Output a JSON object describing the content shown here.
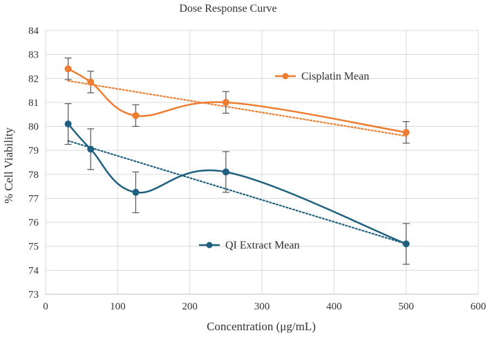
{
  "chart_data": {
    "type": "line",
    "title": "Dose Response Curve",
    "xlabel": "Concentration (μg/mL)",
    "ylabel": "% Cell Viability",
    "xlim": [
      0,
      600
    ],
    "ylim": [
      73,
      84
    ],
    "xticks": [
      0,
      100,
      200,
      300,
      400,
      500,
      600
    ],
    "yticks": [
      73,
      74,
      75,
      76,
      77,
      78,
      79,
      80,
      81,
      82,
      83,
      84
    ],
    "grid": true,
    "smooth": true,
    "series": [
      {
        "name": "Cisplatin Mean",
        "color": "#ED7D31",
        "x": [
          31.25,
          62.5,
          125,
          250,
          500
        ],
        "y": [
          82.4,
          81.85,
          80.45,
          81.0,
          79.75
        ],
        "error": [
          0.45,
          0.45,
          0.45,
          0.45,
          0.45
        ],
        "trendline": {
          "style": "dotted",
          "from": [
            31.25,
            81.9
          ],
          "to": [
            500,
            79.6
          ]
        },
        "legend_position": "middle-right-upper"
      },
      {
        "name": "QI Extract Mean",
        "color": "#1F5F7F",
        "x": [
          31.25,
          62.5,
          125,
          250,
          500
        ],
        "y": [
          80.1,
          79.05,
          77.25,
          78.1,
          75.1
        ],
        "error": [
          0.85,
          0.85,
          0.85,
          0.85,
          0.85
        ],
        "trendline": {
          "style": "dotted",
          "from": [
            31.25,
            79.4
          ],
          "to": [
            500,
            75.1
          ]
        },
        "legend_position": "middle-lower"
      }
    ]
  }
}
